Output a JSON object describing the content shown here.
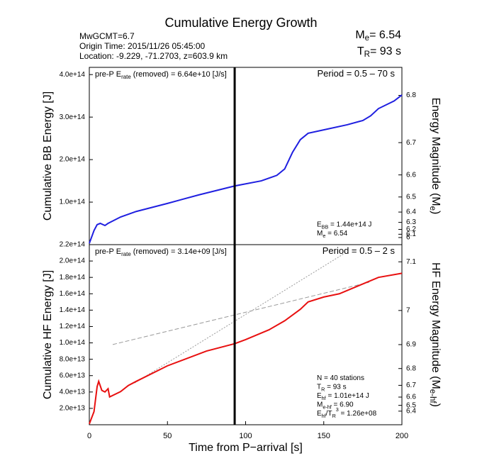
{
  "header": {
    "title": "Cumulative Energy Growth",
    "info": [
      "MwGCMT=6.7",
      "Origin Time: 2015/11/26 05:45:00",
      "Location: -9.229, -71.2703, z=603.9 km"
    ],
    "summary": [
      [
        "M",
        {
          "sub": "e"
        },
        "= 6.54"
      ],
      [
        "T",
        {
          "sub": "R"
        },
        "= 93 s"
      ]
    ]
  },
  "chart_data": [
    {
      "type": "line",
      "ylabel": [
        "Cumulative BB Energy [J]"
      ],
      "y2label": [
        "Energy Magnitude (M",
        {
          "sub": "e"
        },
        ")"
      ],
      "xlim": [
        0,
        200
      ],
      "ylim": [
        0,
        417000000000000.0
      ],
      "yticks": [
        {
          "value": 100000000000000.0,
          "label": "1.0e+14"
        },
        {
          "value": 200000000000000.0,
          "label": "2.0e+14"
        },
        {
          "value": 300000000000000.0,
          "label": "3.0e+14"
        },
        {
          "value": 400000000000000.0,
          "label": "4.0e+14"
        }
      ],
      "y2ticks": [
        6.8,
        6.7,
        6.6,
        6.5,
        6.4,
        6.3,
        6.2,
        6.1,
        6.0
      ],
      "vline": 93,
      "rate_note": [
        "pre-P E",
        {
          "sub": "rate"
        },
        " (removed) = 6.64e+10 [J/s]"
      ],
      "period": [
        "Period = 0.5 – 70 s"
      ],
      "stats": [
        [
          "E",
          {
            "sub": "BB"
          },
          " = 1.44e+14 J"
        ],
        [
          "M",
          {
            "sub": "e"
          },
          " = 6.54"
        ]
      ],
      "series": [
        {
          "color": "#1f1fe0",
          "x": [
            0,
            3,
            5,
            7,
            10,
            12,
            20,
            30,
            50,
            70,
            93,
            110,
            120,
            125,
            130,
            135,
            140,
            150,
            165,
            175,
            180,
            185,
            195,
            200
          ],
          "values": [
            3000000000000.0,
            33000000000000.0,
            47000000000000.0,
            50000000000000.0,
            45000000000000.0,
            50000000000000.0,
            65000000000000.0,
            78000000000000.0,
            97000000000000.0,
            117000000000000.0,
            138000000000000.0,
            150000000000000.0,
            163000000000000.0,
            178000000000000.0,
            217000000000000.0,
            247000000000000.0,
            262000000000000.0,
            270000000000000.0,
            282000000000000.0,
            292000000000000.0,
            303000000000000.0,
            320000000000000.0,
            338000000000000.0,
            352000000000000.0
          ]
        }
      ],
      "reference_lines": []
    },
    {
      "type": "line",
      "ylabel": [
        "Cumulative HF Energy [J]"
      ],
      "y2label": [
        "HF Energy Magnitude (M",
        {
          "sub": "e-hf"
        },
        ")"
      ],
      "xlabel": "Time from P−arrival [s]",
      "xlim": [
        0,
        200
      ],
      "xticks": [
        0,
        50,
        100,
        150,
        200
      ],
      "ylim": [
        0,
        220000000000000.0
      ],
      "yticks": [
        {
          "value": 20000000000000.0,
          "label": "2.0e+13"
        },
        {
          "value": 40000000000000.0,
          "label": "4.0e+13"
        },
        {
          "value": 60000000000000.0,
          "label": "6.0e+13"
        },
        {
          "value": 80000000000000.0,
          "label": "8.0e+13"
        },
        {
          "value": 100000000000000.0,
          "label": "1.0e+14"
        },
        {
          "value": 120000000000000.0,
          "label": "1.2e+14"
        },
        {
          "value": 140000000000000.0,
          "label": "1.4e+14"
        },
        {
          "value": 160000000000000.0,
          "label": "1.6e+14"
        },
        {
          "value": 180000000000000.0,
          "label": "1.8e+14"
        },
        {
          "value": 200000000000000.0,
          "label": "2.0e+14"
        },
        {
          "value": 220000000000000.0,
          "label": "2.2e+14"
        }
      ],
      "y2ticks": [
        7.1,
        7.0,
        6.9,
        6.8,
        6.7,
        6.6,
        6.5,
        6.4
      ],
      "vline": 93,
      "rate_note": [
        "pre-P E",
        {
          "sub": "rate"
        },
        " (removed) = 3.14e+09 [J/s]"
      ],
      "period": [
        "Period = 0.5 – 2 s"
      ],
      "stats": [
        [
          "N = 40 stations"
        ],
        [
          "T",
          {
            "sub": "R"
          },
          " = 93  s"
        ],
        [
          "E",
          {
            "sub": "hf"
          },
          " = 1.01e+14 J"
        ],
        [
          "M",
          {
            "sub": "e-hf"
          },
          " = 6.90"
        ],
        [
          "E",
          {
            "sub": "hf"
          },
          "/T",
          {
            "sub": "R"
          },
          {
            "sup": "3"
          },
          " =  1.26e+08"
        ]
      ],
      "series": [
        {
          "color": "#e81010",
          "x": [
            0,
            3,
            5,
            6,
            8,
            10,
            12,
            13,
            20,
            25,
            30,
            50,
            75,
            93,
            100,
            115,
            125,
            135,
            140,
            150,
            160,
            175,
            185,
            200
          ],
          "values": [
            1000000000000.0,
            16000000000000.0,
            46600000000000.0,
            53000000000000.0,
            42000000000000.0,
            40000000000000.0,
            44000000000000.0,
            34000000000000.0,
            40500000000000.0,
            48000000000000.0,
            53000000000000.0,
            72000000000000.0,
            90000000000000.0,
            99000000000000.0,
            104000000000000.0,
            116000000000000.0,
            127000000000000.0,
            141000000000000.0,
            150000000000000.0,
            156000000000000.0,
            160000000000000.0,
            172000000000000.0,
            180000000000000.0,
            185000000000000.0
          ]
        }
      ],
      "reference_lines": [
        {
          "color": "#999999",
          "x": [
            15,
            179
          ],
          "values": [
            98000000000000.0,
            174000000000000.0
          ]
        },
        {
          "color": "#999999",
          "x": [
            29,
            163
          ],
          "values": [
            51000000000000.0,
            209000000000000.0
          ]
        }
      ]
    }
  ]
}
